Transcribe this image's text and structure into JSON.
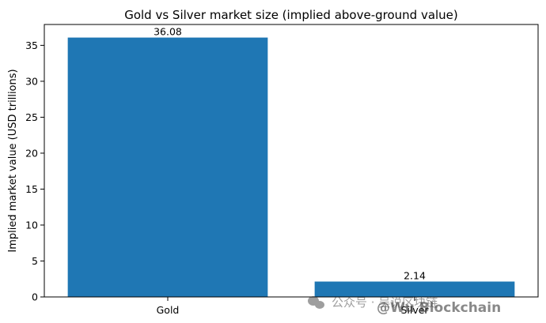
{
  "chart_data": {
    "type": "bar",
    "title": "Gold vs Silver market size (implied above-ground value)",
    "xlabel": "",
    "ylabel": "Implied market value (USD trillions)",
    "categories": [
      "Gold",
      "Silver"
    ],
    "values": [
      36.08,
      2.14
    ],
    "data_labels": [
      "36.08",
      "2.14"
    ],
    "yticks": [
      0,
      5,
      10,
      15,
      20,
      25,
      30,
      35
    ],
    "ylim": [
      0,
      37.9
    ],
    "grid": false,
    "legend": "none",
    "bar_color": "#1f77b4"
  },
  "watermark": {
    "text_cn": "公众号 · 吴说区块链",
    "text_en": "@Wu Blockchain"
  }
}
